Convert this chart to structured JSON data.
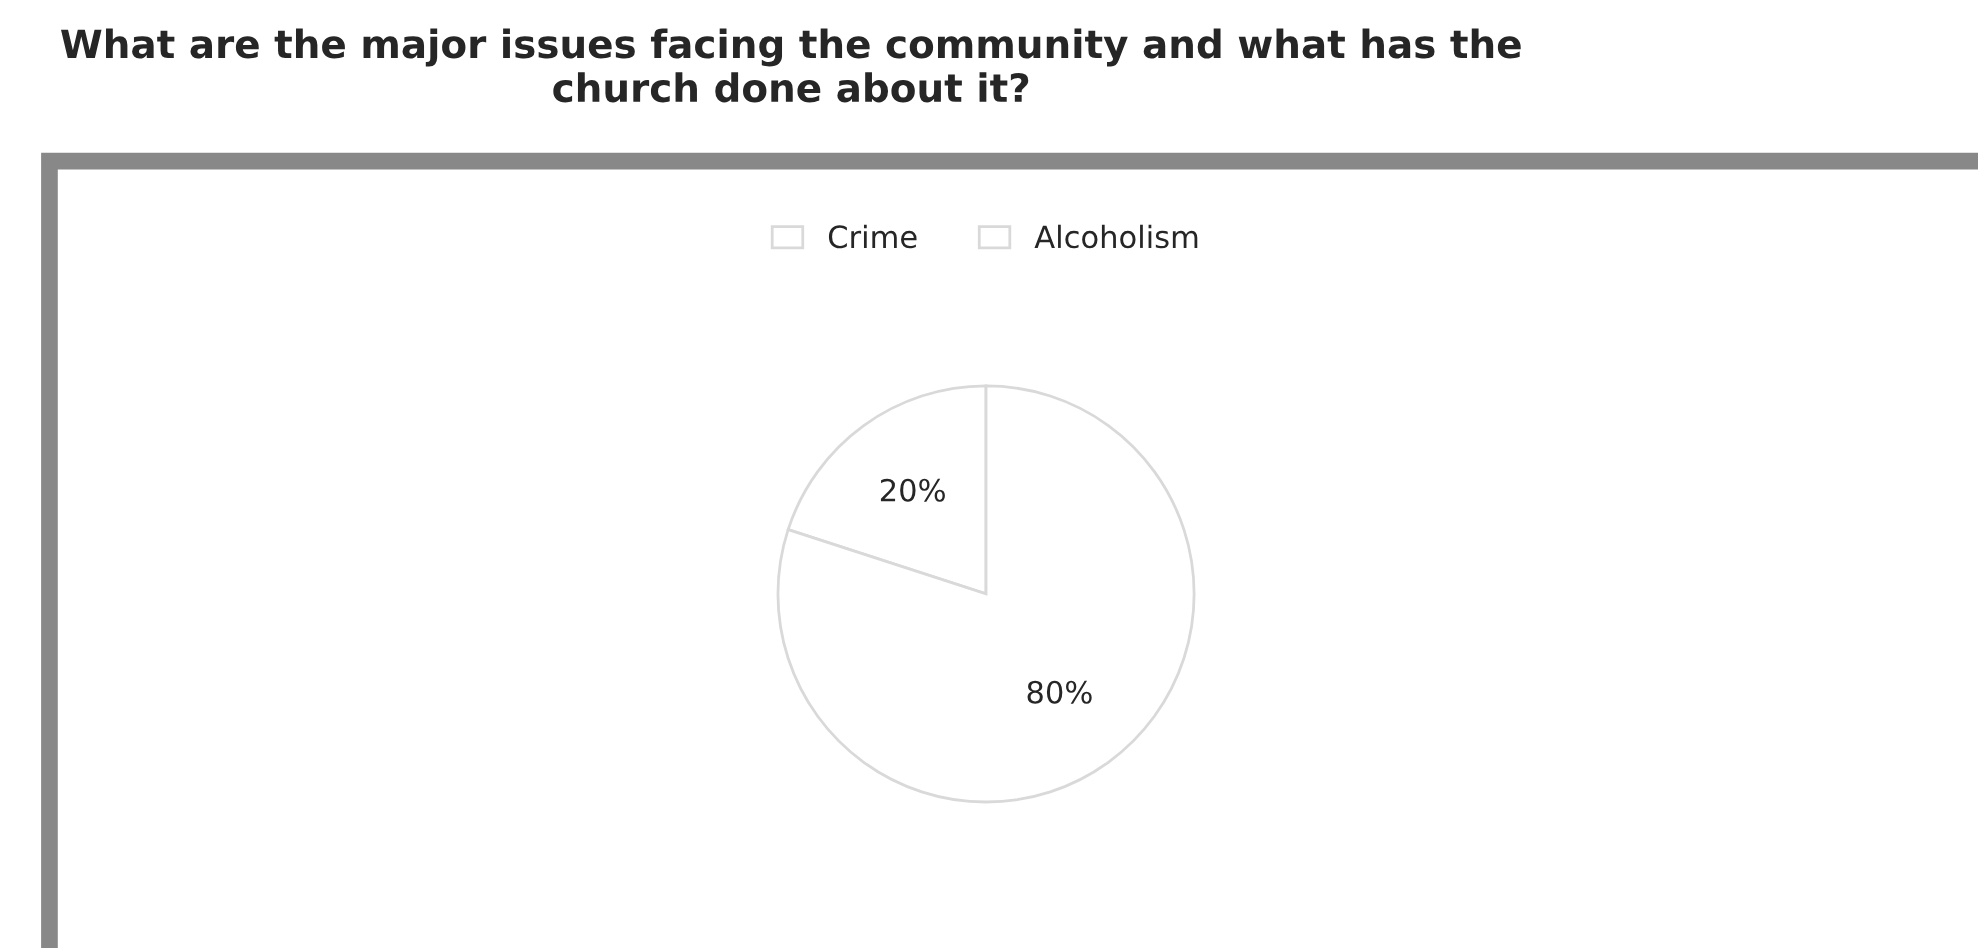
{
  "chart_data": {
    "type": "pie",
    "title": "What are the major issues facing the community and what has the church done about it?",
    "categories": [
      "Crime",
      "Alcoholism"
    ],
    "values": [
      20,
      80
    ],
    "colors": [
      "#ffffff",
      "#ffffff"
    ],
    "value_labels": [
      "20%",
      "80%"
    ],
    "legend": "top"
  }
}
